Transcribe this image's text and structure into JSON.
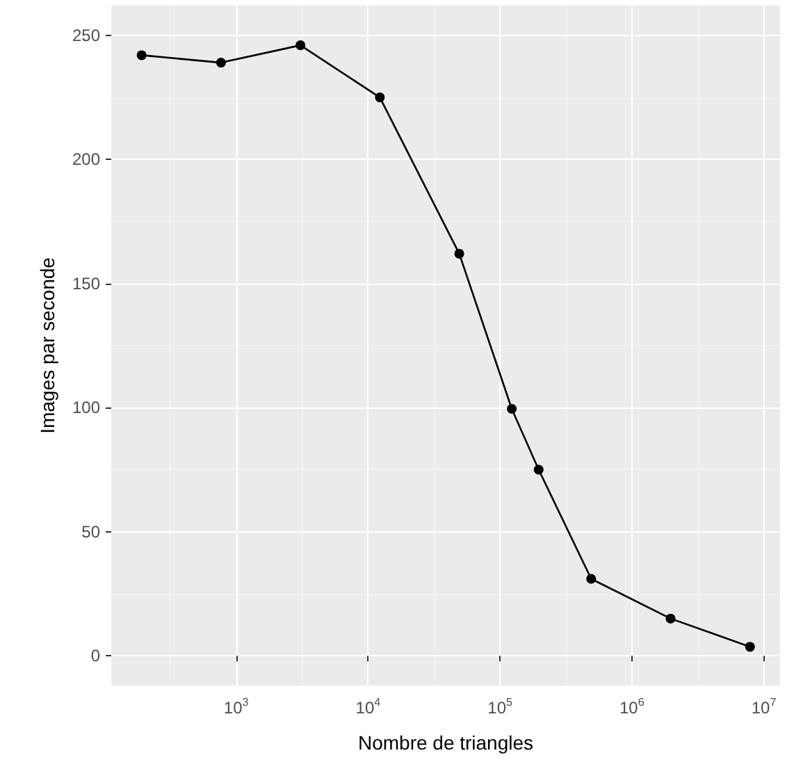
{
  "chart_data": {
    "type": "line",
    "xlabel": "Nombre de triangles",
    "ylabel": "Images par seconde",
    "x": [
      192,
      768,
      3072,
      12288,
      49152,
      122880,
      196608,
      491520,
      1966080,
      7864320
    ],
    "series": [
      {
        "color": "#000000",
        "values": [
          242,
          239,
          246,
          225,
          162,
          99.5,
          75,
          31,
          15,
          3.6
        ]
      }
    ],
    "log": "x",
    "xlim": [
      113,
      13300000
    ],
    "xticks": [
      {
        "value": 1000,
        "label": "10$^{3}$"
      },
      {
        "value": 10000,
        "label": "10$^{4}$"
      },
      {
        "value": 100000,
        "label": "10$^{5}$"
      },
      {
        "value": 1000000,
        "label": "10$^{6}$"
      },
      {
        "value": 10000000,
        "label": "10$^{7}$"
      }
    ],
    "ylim": [
      -12,
      262
    ],
    "yticks": [
      0,
      50,
      100,
      150,
      200,
      250
    ],
    "grid": true,
    "marker": "circle",
    "line_style": "solid"
  }
}
